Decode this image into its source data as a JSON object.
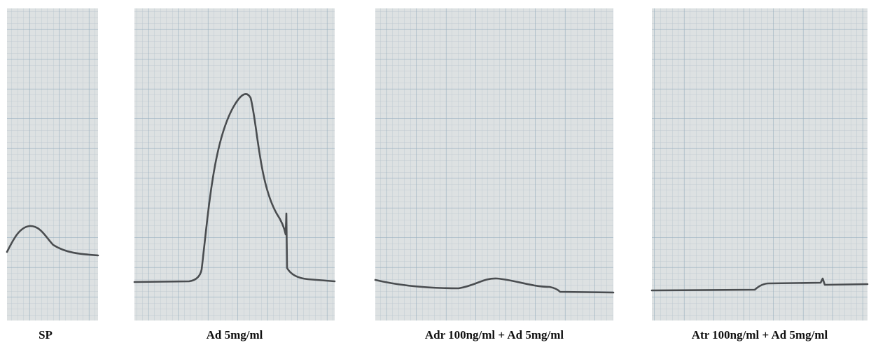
{
  "panels": [
    {
      "label": "SP"
    },
    {
      "label": "Ad 5mg/ml"
    },
    {
      "label": "Adr 100ng/ml + Ad 5mg/ml"
    },
    {
      "label": "Atr 100ng/ml + Ad 5mg/ml"
    }
  ]
}
